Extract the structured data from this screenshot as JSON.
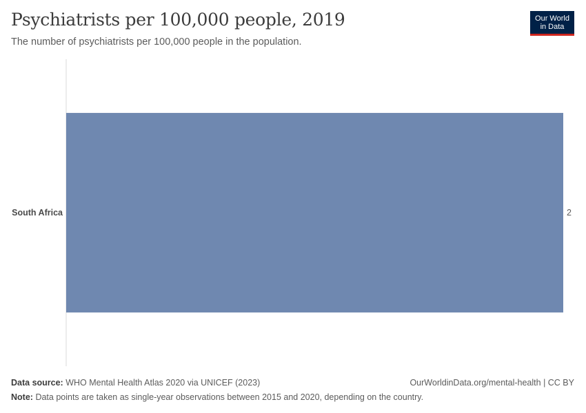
{
  "header": {
    "title": "Psychiatrists per 100,000 people, 2019",
    "subtitle": "The number of psychiatrists per 100,000 people in the population."
  },
  "logo": {
    "line1": "Our World",
    "line2": "in Data",
    "bg_color": "#002147",
    "accent_color": "#ce261e"
  },
  "chart_data": {
    "type": "bar",
    "orientation": "horizontal",
    "categories": [
      "South Africa"
    ],
    "values": [
      2
    ],
    "value_labels": [
      "2"
    ],
    "xlim": [
      0,
      2
    ],
    "bar_color": "#6f88b0",
    "grid": false
  },
  "footer": {
    "source_label": "Data source:",
    "source_text": "WHO Mental Health Atlas 2020 via UNICEF (2023)",
    "note_label": "Note:",
    "note_text": "Data points are taken as single-year observations between 2015 and 2020, depending on the country.",
    "credit": "OurWorldinData.org/mental-health | CC BY"
  }
}
